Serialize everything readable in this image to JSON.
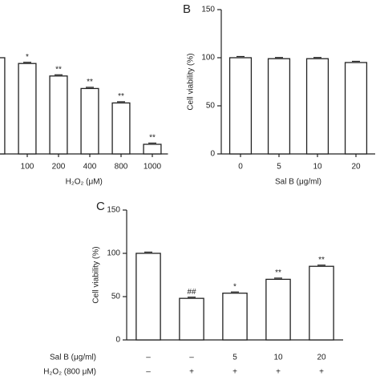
{
  "chart_data": [
    {
      "type": "bar",
      "xlabel": "H₂O₂ (μM)",
      "categories": [
        null,
        "100",
        "200",
        "400",
        "800",
        "1000"
      ],
      "values": [
        100,
        94,
        81,
        68,
        53,
        10
      ],
      "annotations": [
        null,
        "*",
        "**",
        "**",
        "**",
        "**"
      ],
      "color": "#ffffff",
      "ylim": [
        0,
        150
      ]
    },
    {
      "type": "bar",
      "panel": "B",
      "ylabel": "Cell viability (%)",
      "xlabel": "Sal B (μg/ml)",
      "categories": [
        "0",
        "5",
        "10",
        "20"
      ],
      "values": [
        100,
        99,
        99,
        95
      ],
      "color": "#ffffff",
      "ylim": [
        0,
        150
      ],
      "yticks": [
        0,
        50,
        100,
        150
      ]
    },
    {
      "type": "bar",
      "panel": "C",
      "ylabel": "Cell viability (%)",
      "values": [
        100,
        48,
        54,
        70,
        85
      ],
      "annotations": [
        null,
        "##",
        "*",
        "**",
        "**"
      ],
      "row_labels": [
        "Sal B (μg/ml)",
        "H₂O₂ (800 μM)"
      ],
      "rows": [
        [
          "–",
          "–",
          "5",
          "10",
          "20"
        ],
        [
          "–",
          "+",
          "+",
          "+",
          "+"
        ]
      ],
      "color": "#ffffff",
      "ylim": [
        0,
        150
      ],
      "yticks": [
        0,
        50,
        100,
        150
      ]
    }
  ]
}
